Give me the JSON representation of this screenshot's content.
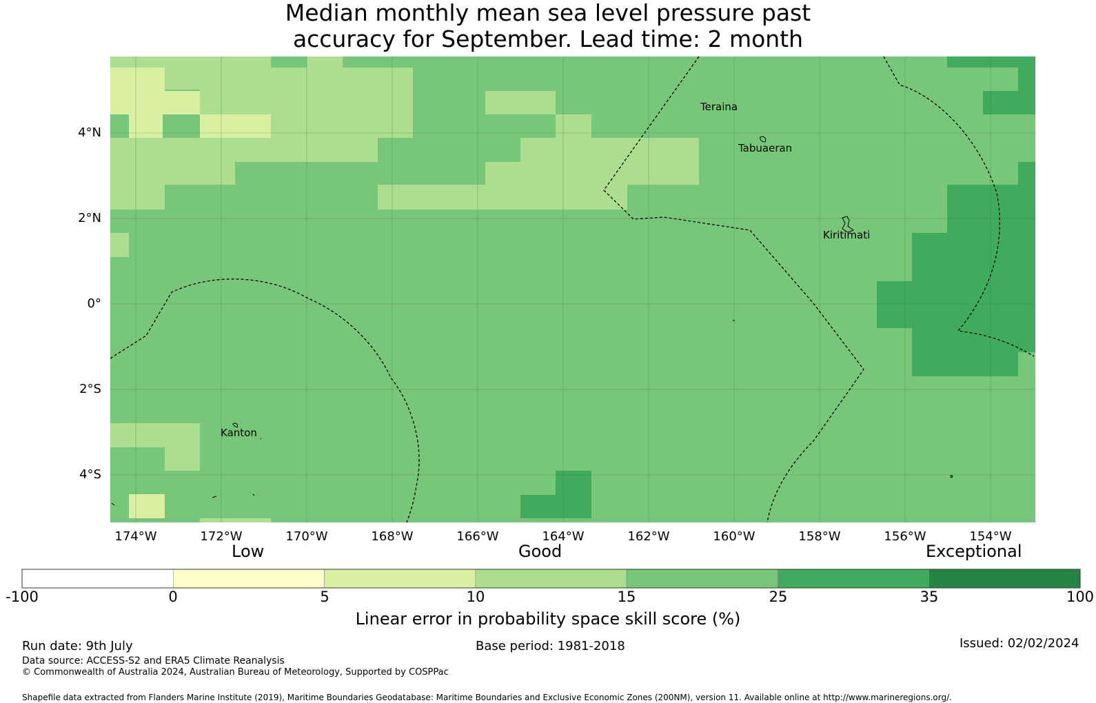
{
  "title_line1": "Median monthly mean sea level pressure past",
  "title_line2": "accuracy for September. Lead time: 2 month",
  "map": {
    "lat_labels": [
      "4°N",
      "2°N",
      "0°",
      "2°S",
      "4°S"
    ],
    "lon_labels": [
      "174°W",
      "172°W",
      "170°W",
      "168°W",
      "166°W",
      "164°W",
      "162°W",
      "160°W",
      "158°W",
      "156°W",
      "154°W"
    ],
    "places": [
      "Teraina",
      "Tabuaeran",
      "Kiritimati",
      "Kanton"
    ]
  },
  "colorbar": {
    "categories": [
      "Low",
      "Good",
      "Exceptional"
    ],
    "ticks": [
      "-100",
      "0",
      "5",
      "10",
      "15",
      "25",
      "35",
      "100"
    ],
    "colors": [
      "#ffffff",
      "#ffffcc",
      "#d9f0a3",
      "#addd8e",
      "#78c679",
      "#41ab5d",
      "#238443"
    ],
    "label": "Linear error in probability space skill score (%)"
  },
  "footer": {
    "run_date": "Run date: 9th July",
    "base_period": "Base period: 1981-2018",
    "issued": "Issued: 02/02/2024",
    "data_source": "Data source: ACCESS-S2 and ERA5 Climate Reanalysis",
    "copyright": "© Commonwealth of Australia 2024, Australian Bureau of Meteorology, Supported by COSPPac",
    "shapefile": "Shapefile data extracted from Flanders Marine Institute (2019), Maritime Boundaries Geodatabase: Maritime Boundaries and Exclusive Economic Zones (200NM), version 11. Available online at http://www.marineregions.org/."
  }
}
